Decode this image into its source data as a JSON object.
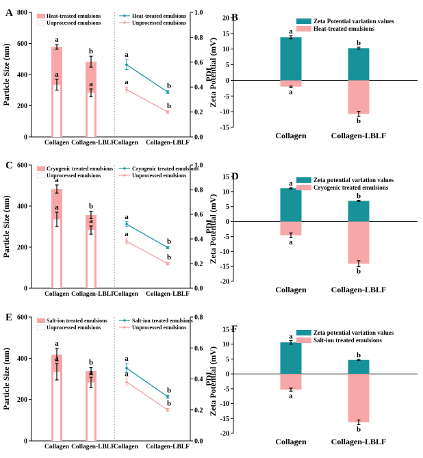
{
  "colors": {
    "pink": "#f7a7a7",
    "teal": "#17929b",
    "white": "#ffffff",
    "line_pink": "#f5a0a0",
    "line_teal": "#1a9aa0",
    "axis": "#000000"
  },
  "rows": [
    {
      "size": {
        "letter": "A",
        "ylabel": "Particle Size (nm)",
        "ylim": [
          0,
          800
        ],
        "yticks": [
          0,
          200,
          400,
          600,
          800
        ],
        "categories": [
          "Collagen",
          "Collagen-LBLF"
        ],
        "series": [
          {
            "name": "Heat-treated emulsions",
            "values": [
              578,
              483
            ],
            "errors": [
              15,
              35
            ],
            "letters": [
              "a",
              "b"
            ]
          },
          {
            "name": "Unprocessed emulsions",
            "values": [
              335,
              283
            ],
            "errors": [
              35,
              25
            ],
            "letters": [
              "a",
              "a"
            ]
          }
        ]
      },
      "pdi": {
        "ylabel": "PDI",
        "ylim": [
          0,
          1.0
        ],
        "yticks": [
          "0.0",
          "0.2",
          "0.4",
          "0.6",
          "0.8",
          "1.0"
        ],
        "categories": [
          "Collagen",
          "Collagen-LBLF"
        ],
        "series": [
          {
            "name": "Heat-treated emulsions",
            "values": [
              0.58,
              0.36
            ],
            "errors": [
              0.04,
              0.01
            ],
            "letters": [
              "a",
              "b"
            ]
          },
          {
            "name": "Unprocessed emulsions",
            "values": [
              0.38,
              0.2
            ],
            "errors": [
              0.02,
              0.01
            ],
            "letters": [
              "a",
              "b"
            ]
          }
        ]
      },
      "zeta": {
        "letter": "B",
        "ylabel": "Zeta Potential (mV)",
        "ylim": [
          -15,
          20
        ],
        "yticks": [
          -15,
          -10,
          -5,
          0,
          5,
          10,
          15,
          20
        ],
        "categories": [
          "Collagen",
          "Collagen-LBLF"
        ],
        "series": [
          {
            "name": "Zeta Potential variation values",
            "values": [
              13.8,
              10.3
            ],
            "errors": [
              0.5,
              0.3
            ],
            "letters": [
              "a",
              "b"
            ]
          },
          {
            "name": "Heat-treated emulsions",
            "values": [
              -2.0,
              -10.7
            ],
            "errors": [
              0.2,
              0.8
            ],
            "letters": [
              "a",
              "b"
            ]
          }
        ]
      }
    },
    {
      "size": {
        "letter": "C",
        "ylabel": "Particle Size (nm)",
        "ylim": [
          0,
          600
        ],
        "yticks": [
          0,
          200,
          400,
          600
        ],
        "categories": [
          "Collagen",
          "Collagen-LBLF"
        ],
        "series": [
          {
            "name": "Cryogenic treated emulsions",
            "values": [
              483,
              357
            ],
            "errors": [
              20,
              18
            ],
            "letters": [
              "a",
              "b"
            ]
          },
          {
            "name": "Unprocessed emulsions",
            "values": [
              335,
              283
            ],
            "errors": [
              35,
              20
            ],
            "letters": [
              "a",
              "a"
            ]
          }
        ]
      },
      "pdi": {
        "ylabel": "PDI",
        "ylim": [
          0,
          1.0
        ],
        "yticks": [
          "0.0",
          "0.2",
          "0.4",
          "0.6",
          "0.8",
          "1.0"
        ],
        "categories": [
          "Collagen",
          "Collagen-LBLF"
        ],
        "series": [
          {
            "name": "Cryogenic treated emulsions",
            "values": [
              0.52,
              0.33
            ],
            "errors": [
              0.02,
              0.01
            ],
            "letters": [
              "a",
              "b"
            ]
          },
          {
            "name": "Unprocessed emulsions",
            "values": [
              0.38,
              0.2
            ],
            "errors": [
              0.02,
              0.01
            ],
            "letters": [
              "a",
              "b"
            ]
          }
        ]
      },
      "zeta": {
        "letter": "D",
        "ylabel": "Zeta Potential (mV)",
        "ylim": [
          -20,
          15
        ],
        "yticks": [
          -20,
          -15,
          -10,
          -5,
          0,
          5,
          10,
          15
        ],
        "categories": [
          "Collagen",
          "Collagen-LBLF"
        ],
        "series": [
          {
            "name": "Zeta potential variation values",
            "values": [
              11.1,
              6.9
            ],
            "errors": [
              0.2,
              0.2
            ],
            "letters": [
              "a",
              "b"
            ]
          },
          {
            "name": "Cryogenic treated emulsions",
            "values": [
              -4.6,
              -14.1
            ],
            "errors": [
              0.8,
              1.0
            ],
            "letters": [
              "a",
              "b"
            ]
          }
        ]
      }
    },
    {
      "size": {
        "letter": "E",
        "ylabel": "Particle Size (nm)",
        "ylim": [
          0,
          600
        ],
        "yticks": [
          0,
          200,
          400,
          600
        ],
        "categories": [
          "Collagen",
          "Collagen-LBLF"
        ],
        "series": [
          {
            "name": "Salt-ion treated emulsions",
            "values": [
              418,
              338
            ],
            "errors": [
              30,
              18
            ],
            "letters": [
              "a",
              "b"
            ]
          },
          {
            "name": "Unprocessed emulsions",
            "values": [
              335,
              283
            ],
            "errors": [
              40,
              25
            ],
            "letters": [
              "a",
              "a"
            ]
          }
        ]
      },
      "pdi": {
        "ylabel": "PDI",
        "ylim": [
          0,
          0.8
        ],
        "yticks": [
          "0.0",
          "0.2",
          "0.4",
          "0.6",
          "0.8"
        ],
        "categories": [
          "Collagen",
          "Collagen-LBLF"
        ],
        "series": [
          {
            "name": "Salt-ion treated emulsions",
            "values": [
              0.47,
              0.285
            ],
            "errors": [
              0.03,
              0.01
            ],
            "letters": [
              "a",
              "b"
            ]
          },
          {
            "name": "Unprocessed emulsions",
            "values": [
              0.38,
              0.2
            ],
            "errors": [
              0.02,
              0.01
            ],
            "letters": [
              "a",
              "b"
            ]
          }
        ]
      },
      "zeta": {
        "letter": "F",
        "ylabel": "Zeta Potential (mV)",
        "ylim": [
          -20,
          15
        ],
        "yticks": [
          -20,
          -15,
          -10,
          -5,
          0,
          5,
          10,
          15
        ],
        "categories": [
          "Collagen",
          "Collagen-LBLF"
        ],
        "series": [
          {
            "name": "Zeta potential variation values",
            "values": [
              10.6,
              4.7
            ],
            "errors": [
              0.6,
              0.2
            ],
            "letters": [
              "a",
              "b"
            ]
          },
          {
            "name": "Salt-ion treated emulsions",
            "values": [
              -5.3,
              -16.3
            ],
            "errors": [
              0.5,
              0.8
            ],
            "letters": [
              "a",
              "b"
            ]
          }
        ]
      }
    }
  ]
}
